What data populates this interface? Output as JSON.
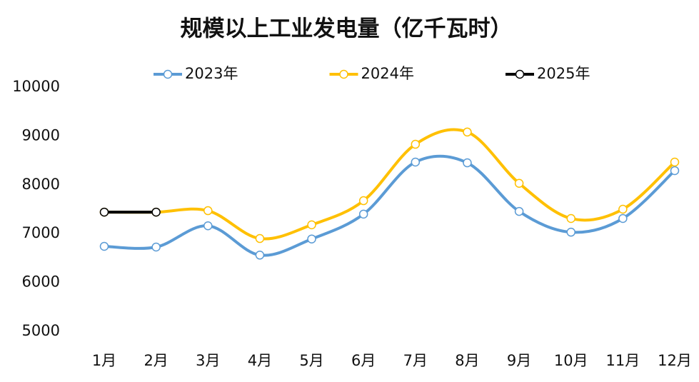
{
  "chart_data": {
    "type": "line",
    "title": "规模以上工业发电量（亿千瓦时）",
    "categories": [
      "1月",
      "2月",
      "3月",
      "4月",
      "5月",
      "6月",
      "7月",
      "8月",
      "9月",
      "10月",
      "11月",
      "12月"
    ],
    "series": [
      {
        "name": "2023年",
        "color": "#5b9bd5",
        "values": [
          6740,
          6725,
          7160,
          6560,
          6890,
          7400,
          8465,
          8450,
          7455,
          7030,
          7310,
          8290
        ]
      },
      {
        "name": "2024年",
        "color": "#ffc000",
        "values": [
          7440,
          7440,
          7470,
          6900,
          7180,
          7675,
          8830,
          9080,
          8030,
          7310,
          7500,
          8465
        ]
      },
      {
        "name": "2025年",
        "color": "#000000",
        "values": [
          7440,
          7440,
          null,
          null,
          null,
          null,
          null,
          null,
          null,
          null,
          null,
          null
        ]
      }
    ],
    "ylim": [
      5000,
      10000
    ],
    "yticks": [
      5000,
      6000,
      7000,
      8000,
      9000,
      10000
    ],
    "grid": false,
    "legend": "top",
    "smooth": true
  }
}
